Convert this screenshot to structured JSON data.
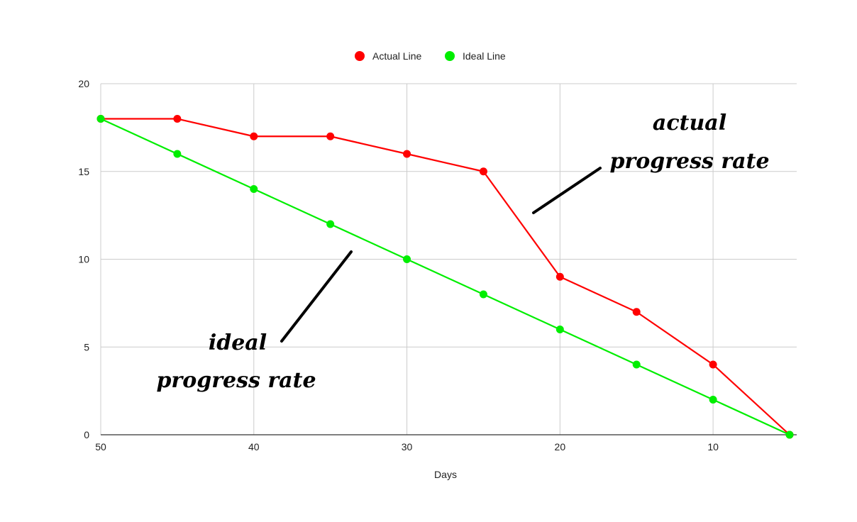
{
  "chart_data": {
    "type": "line",
    "title": "",
    "xlabel": "Days",
    "ylabel": "",
    "x_reversed": true,
    "xlim": [
      50,
      5
    ],
    "ylim": [
      0,
      20
    ],
    "x_ticks": [
      50,
      40,
      30,
      20,
      10
    ],
    "y_ticks": [
      0,
      5,
      10,
      15,
      20
    ],
    "grid": true,
    "legend_position": "top",
    "series": [
      {
        "name": "Actual Line",
        "color": "#ff0000",
        "x": [
          50,
          45,
          40,
          35,
          30,
          25,
          20,
          15,
          10,
          5
        ],
        "values": [
          18,
          18,
          17,
          17,
          16,
          15,
          9,
          7,
          4,
          0
        ]
      },
      {
        "name": "Ideal Line",
        "color": "#00ee00",
        "x": [
          50,
          45,
          40,
          35,
          30,
          25,
          20,
          15,
          10,
          5
        ],
        "values": [
          18,
          16,
          14,
          12,
          10,
          8,
          6,
          4,
          2,
          0
        ]
      }
    ],
    "annotations": [
      {
        "lines": [
          "actual",
          "progress rate"
        ]
      },
      {
        "lines": [
          "ideal",
          "progress rate"
        ]
      }
    ]
  }
}
